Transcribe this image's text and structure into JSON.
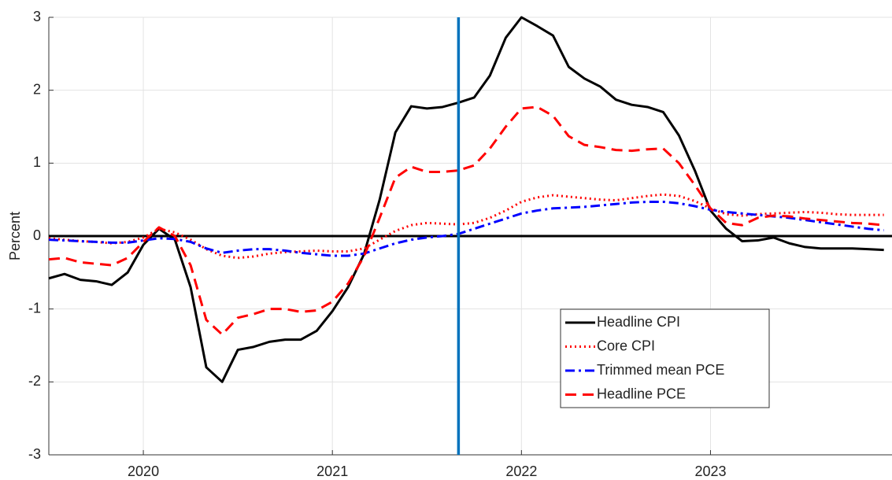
{
  "chart_data": {
    "type": "line",
    "ylabel": "Percent",
    "x": [
      2019.5,
      2019.583,
      2019.667,
      2019.75,
      2019.833,
      2019.917,
      2020.0,
      2020.083,
      2020.167,
      2020.25,
      2020.333,
      2020.417,
      2020.5,
      2020.583,
      2020.667,
      2020.75,
      2020.833,
      2020.917,
      2021.0,
      2021.083,
      2021.167,
      2021.25,
      2021.333,
      2021.417,
      2021.5,
      2021.583,
      2021.667,
      2021.75,
      2021.833,
      2021.917,
      2022.0,
      2022.083,
      2022.167,
      2022.25,
      2022.333,
      2022.417,
      2022.5,
      2022.583,
      2022.667,
      2022.75,
      2022.833,
      2022.917,
      2023.0,
      2023.083,
      2023.167,
      2023.25,
      2023.333,
      2023.417,
      2023.5,
      2023.583,
      2023.667,
      2023.75,
      2023.833,
      2023.917
    ],
    "series": [
      {
        "name": "Headline CPI",
        "color": "#000000",
        "dash": "solid",
        "values": [
          -0.58,
          -0.52,
          -0.6,
          -0.62,
          -0.67,
          -0.5,
          -0.12,
          0.1,
          -0.05,
          -0.7,
          -1.8,
          -2.0,
          -1.56,
          -1.52,
          -1.45,
          -1.42,
          -1.42,
          -1.3,
          -1.03,
          -0.7,
          -0.25,
          0.5,
          1.42,
          1.78,
          1.75,
          1.77,
          1.83,
          1.9,
          2.2,
          2.72,
          3.0,
          2.88,
          2.75,
          2.32,
          2.16,
          2.05,
          1.87,
          1.8,
          1.77,
          1.7,
          1.38,
          0.9,
          0.35,
          0.1,
          -0.07,
          -0.06,
          -0.02,
          -0.1,
          -0.15,
          -0.17,
          -0.17,
          -0.17,
          -0.18,
          -0.19
        ]
      },
      {
        "name": "Core CPI",
        "color": "#ff0000",
        "dash": "dotted",
        "values": [
          -0.03,
          -0.05,
          -0.07,
          -0.08,
          -0.1,
          -0.08,
          -0.02,
          0.1,
          0.05,
          -0.05,
          -0.18,
          -0.27,
          -0.3,
          -0.28,
          -0.24,
          -0.22,
          -0.21,
          -0.2,
          -0.21,
          -0.21,
          -0.17,
          -0.05,
          0.07,
          0.15,
          0.18,
          0.17,
          0.16,
          0.18,
          0.25,
          0.35,
          0.47,
          0.53,
          0.56,
          0.54,
          0.52,
          0.5,
          0.49,
          0.52,
          0.55,
          0.57,
          0.55,
          0.48,
          0.38,
          0.3,
          0.28,
          0.3,
          0.31,
          0.32,
          0.33,
          0.32,
          0.3,
          0.29,
          0.29,
          0.29
        ]
      },
      {
        "name": "Trimmed mean PCE",
        "color": "#0000ff",
        "dash": "dashdot",
        "values": [
          -0.05,
          -0.06,
          -0.07,
          -0.08,
          -0.09,
          -0.09,
          -0.06,
          -0.03,
          -0.04,
          -0.08,
          -0.17,
          -0.23,
          -0.2,
          -0.18,
          -0.18,
          -0.2,
          -0.23,
          -0.25,
          -0.27,
          -0.27,
          -0.24,
          -0.17,
          -0.1,
          -0.05,
          -0.02,
          0.0,
          0.03,
          0.1,
          0.17,
          0.24,
          0.31,
          0.35,
          0.38,
          0.39,
          0.4,
          0.42,
          0.44,
          0.46,
          0.47,
          0.47,
          0.45,
          0.41,
          0.36,
          0.33,
          0.31,
          0.29,
          0.27,
          0.25,
          0.22,
          0.19,
          0.16,
          0.13,
          0.1,
          0.08
        ]
      },
      {
        "name": "Headline PCE",
        "color": "#ff0000",
        "dash": "dashed",
        "values": [
          -0.32,
          -0.3,
          -0.36,
          -0.38,
          -0.4,
          -0.3,
          -0.08,
          0.12,
          0.0,
          -0.4,
          -1.15,
          -1.35,
          -1.12,
          -1.07,
          -1.0,
          -1.0,
          -1.04,
          -1.02,
          -0.9,
          -0.65,
          -0.28,
          0.25,
          0.8,
          0.95,
          0.88,
          0.88,
          0.9,
          0.97,
          1.2,
          1.5,
          1.75,
          1.77,
          1.65,
          1.37,
          1.25,
          1.22,
          1.18,
          1.17,
          1.19,
          1.2,
          1.0,
          0.7,
          0.38,
          0.18,
          0.15,
          0.25,
          0.28,
          0.27,
          0.24,
          0.22,
          0.2,
          0.18,
          0.17,
          0.15
        ]
      }
    ],
    "xlim": [
      2019.5,
      2023.96
    ],
    "xticks": [
      2020,
      2021,
      2022,
      2023
    ],
    "ylim": [
      -3,
      3
    ],
    "yticks": [
      -3,
      -2,
      -1,
      0,
      1,
      2,
      3
    ],
    "grid": true,
    "hline_y": 0,
    "hline_color": "#000000",
    "vline_x": 2021.667,
    "vline_color": "#0072bd",
    "legend_loc": "lower center"
  }
}
